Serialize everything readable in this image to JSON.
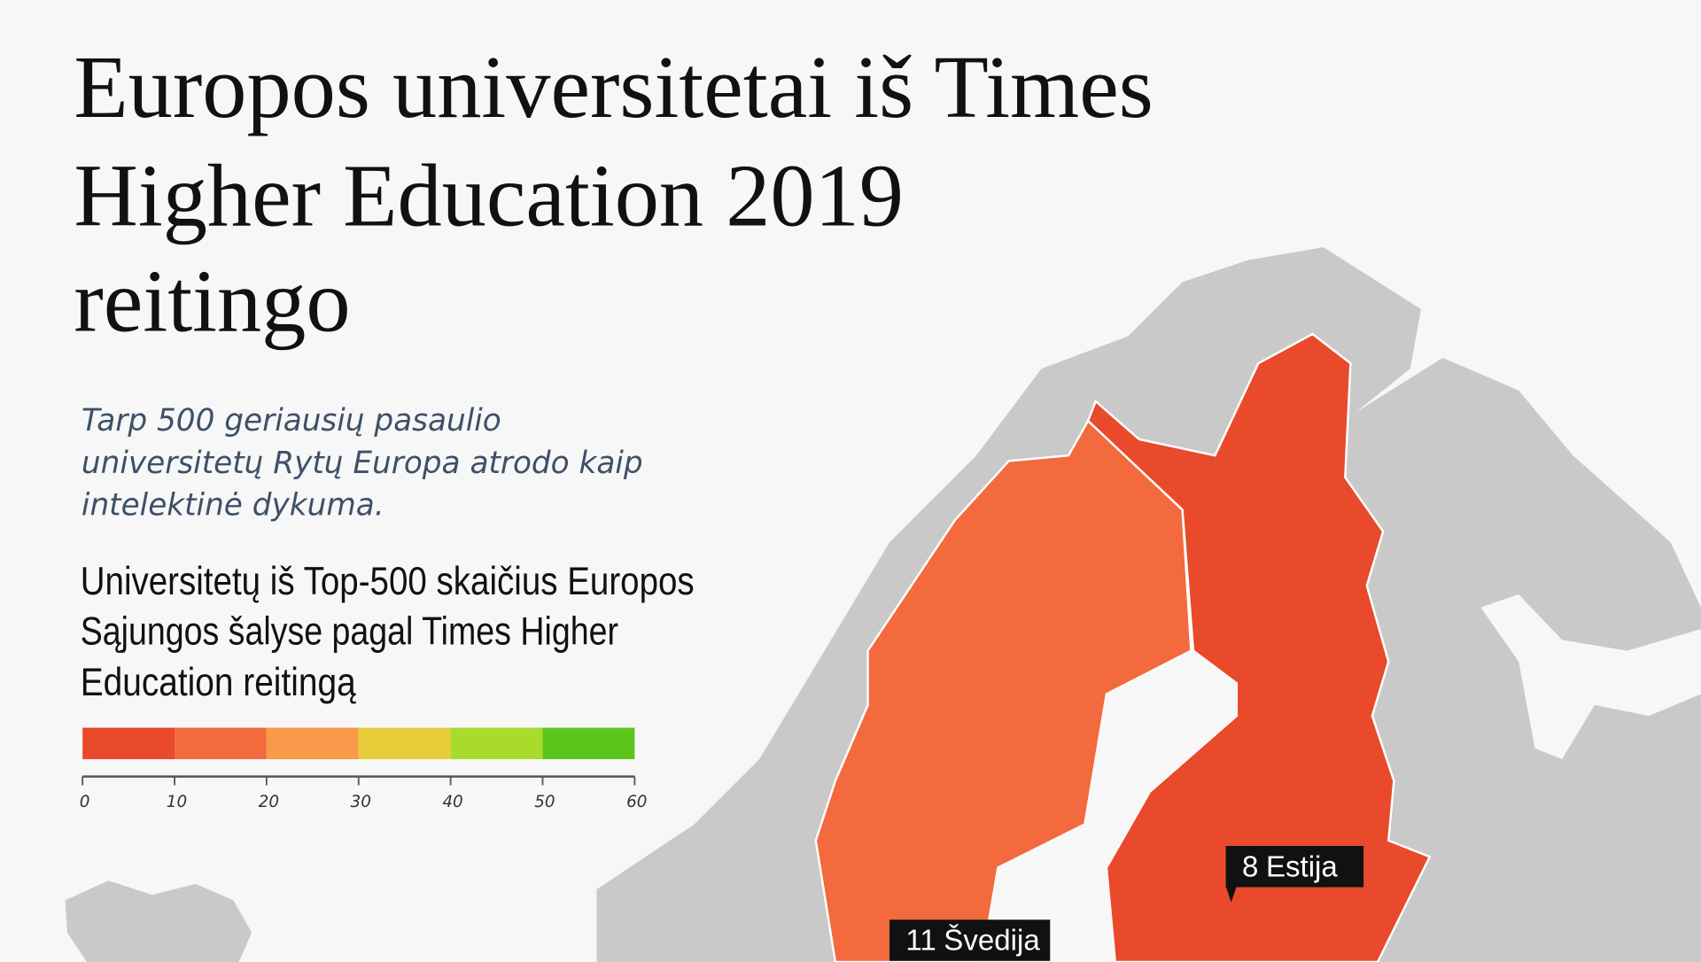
{
  "header": {
    "title_lines": [
      "Europos universitetai iš Times",
      "Higher Education 2019",
      "reitingo"
    ],
    "subtitle_lines": [
      "Tarp 500 geriausių pasaulio",
      "universitetų Rytų Europa atrodo kaip",
      "intelektinė dykuma."
    ]
  },
  "legend": {
    "heading_lines": [
      "Universitetų iš Top-500 skaičius Europos",
      "Sąjungos šalyse pagal Times Higher",
      "Education reitingą"
    ],
    "range": [
      0,
      60
    ],
    "ticks": [
      0,
      10,
      20,
      30,
      40,
      50,
      60
    ],
    "colors": [
      "#e84a2b",
      "#f26a3d",
      "#f89a4a",
      "#e8cd3a",
      "#a8db2c",
      "#5cc51c"
    ]
  },
  "map": {
    "labels": [
      {
        "count": 8,
        "country": "Estija"
      },
      {
        "count": 11,
        "country": "Švedija"
      }
    ]
  }
}
